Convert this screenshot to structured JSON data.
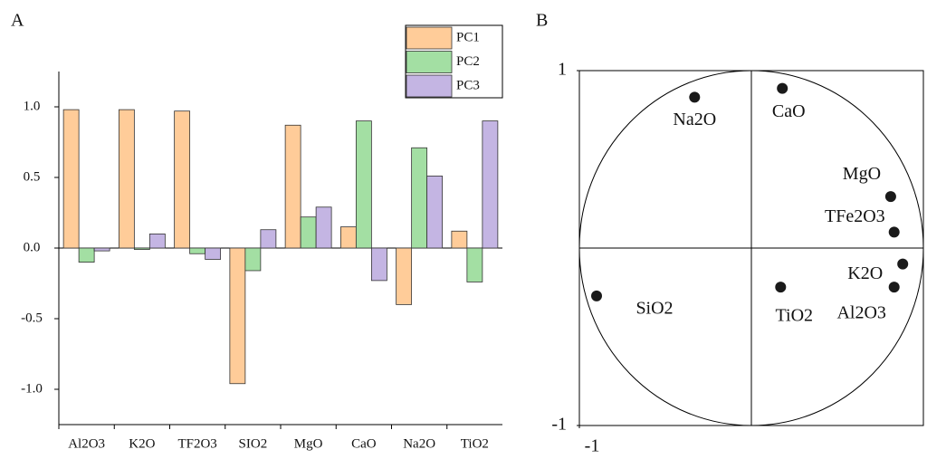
{
  "chart_data": [
    {
      "type": "bar",
      "label": "A",
      "categories": [
        "Al2O3",
        "K2O",
        "TF2O3",
        "SIO2",
        "MgO",
        "CaO",
        "Na2O",
        "TiO2"
      ],
      "series": [
        {
          "name": "PC1",
          "color": "#ffcc99",
          "values": [
            0.98,
            0.98,
            0.97,
            -0.96,
            0.87,
            0.15,
            -0.4,
            0.12
          ]
        },
        {
          "name": "PC2",
          "color": "#a3dfa3",
          "values": [
            -0.1,
            -0.01,
            -0.04,
            -0.16,
            0.22,
            0.9,
            0.71,
            -0.24
          ]
        },
        {
          "name": "PC3",
          "color": "#c4b5e3",
          "values": [
            -0.02,
            0.1,
            -0.08,
            0.13,
            0.29,
            -0.23,
            0.51,
            0.9
          ]
        }
      ],
      "ylim": [
        -1.25,
        1.25
      ],
      "yticks": [
        {
          "value": 1,
          "label": "1.0"
        },
        0.5,
        {
          "value": 0,
          "label": "0.0"
        },
        -0.5,
        {
          "value": -1,
          "label": "-1.0"
        }
      ],
      "legend": "upper right"
    },
    {
      "type": "scatter",
      "label": "B",
      "labels": [
        "Na2O",
        "CaO",
        "MgO",
        "TFe2O3",
        "K2O",
        "Al2O3",
        "TiO2",
        "SiO2"
      ],
      "x": [
        -0.33,
        0.18,
        0.81,
        0.83,
        0.88,
        0.83,
        0.17,
        -0.9
      ],
      "y": [
        0.85,
        0.9,
        0.29,
        0.09,
        -0.09,
        -0.22,
        -0.22,
        -0.27
      ],
      "color": "#1a1a1a",
      "xlim": [
        -1,
        1
      ],
      "ylim": [
        -1,
        1
      ],
      "xticks": [
        -1
      ],
      "yticks": [
        -1,
        1
      ]
    }
  ]
}
